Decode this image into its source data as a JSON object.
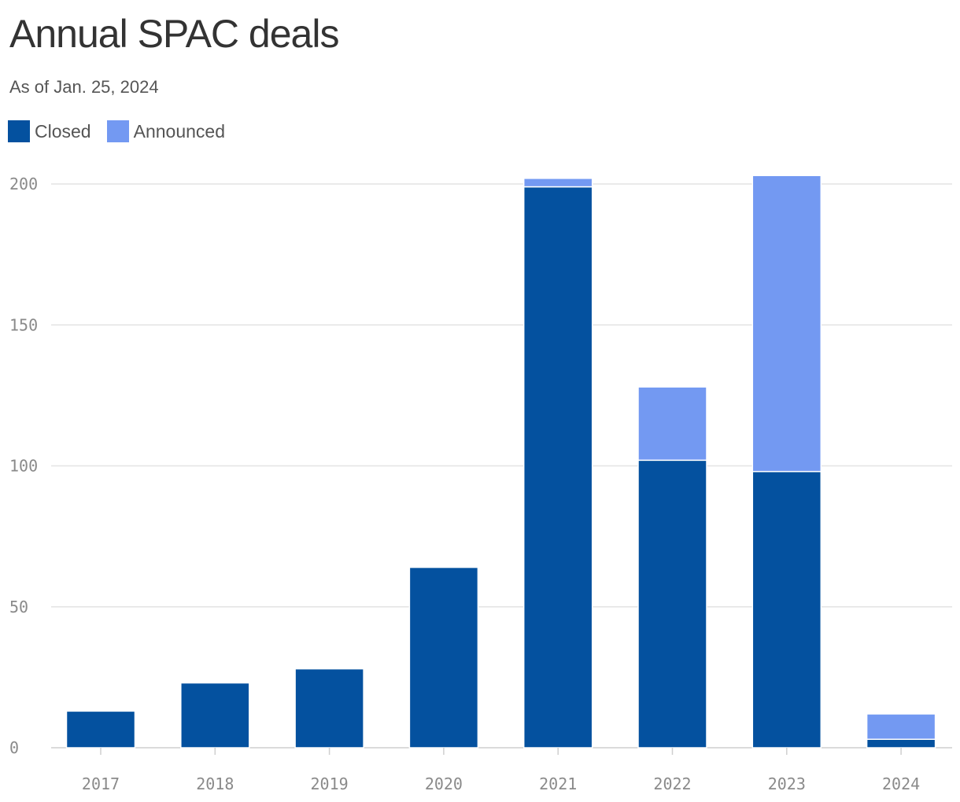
{
  "chart_data": {
    "type": "bar",
    "stacked": true,
    "title": "Annual SPAC deals",
    "subtitle": "As of Jan. 25, 2024",
    "categories": [
      "2017",
      "2018",
      "2019",
      "2020",
      "2021",
      "2022",
      "2023",
      "2024"
    ],
    "series": [
      {
        "name": "Closed",
        "color": "#04519f",
        "values": [
          13,
          23,
          28,
          64,
          199,
          102,
          98,
          3
        ]
      },
      {
        "name": "Announced",
        "color": "#7399f2",
        "values": [
          0,
          0,
          0,
          0,
          3,
          26,
          105,
          9
        ]
      }
    ],
    "ylim": [
      0,
      200
    ],
    "yticks": [
      "0",
      "50",
      "100",
      "150",
      "200"
    ],
    "xlabel": "",
    "ylabel": "",
    "grid": true,
    "legend_position": "top-left"
  }
}
